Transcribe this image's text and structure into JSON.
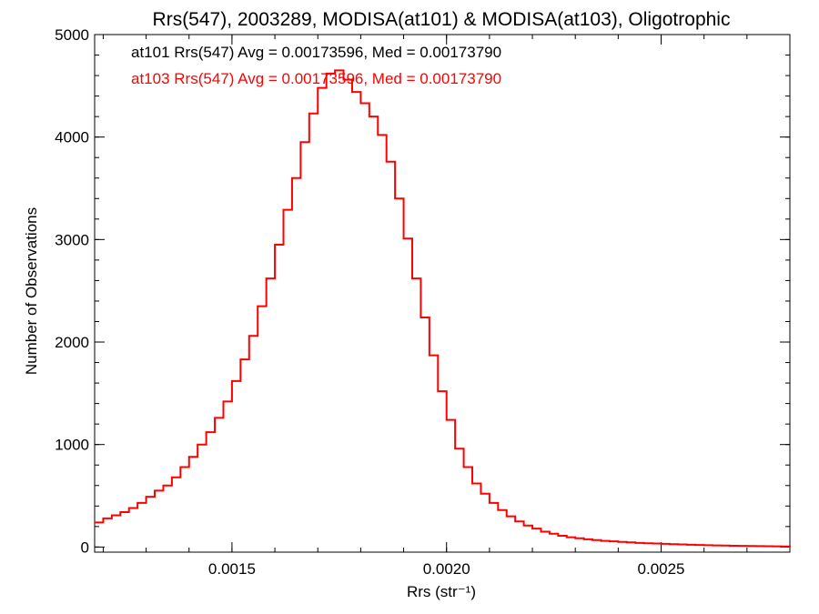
{
  "chart_data": {
    "type": "line",
    "title": "Rrs(547), 2003289, MODISA(at101) & MODISA(at103), Oligotrophic",
    "xlabel": "Rrs (str⁻¹)",
    "ylabel": "Number of Observations",
    "xlim": [
      0.00118,
      0.0028
    ],
    "ylim": [
      -50,
      5000
    ],
    "xticks": [
      0.0015,
      0.002,
      0.0025
    ],
    "xtick_labels": [
      "0.0015",
      "0.0020",
      "0.0025"
    ],
    "yticks": [
      0,
      1000,
      2000,
      3000,
      4000,
      5000
    ],
    "ytick_labels": [
      "0",
      "1000",
      "2000",
      "3000",
      "4000",
      "5000"
    ],
    "x_minor_step": 0.0001,
    "y_minor_step": 200,
    "grid": false,
    "annotations": [
      {
        "text": "at101 Rrs(547) Avg = 0.00173596, Med = 0.00173790",
        "color": "#000000"
      },
      {
        "text": "at103 Rrs(547) Avg = 0.00173596, Med = 0.00173790",
        "color": "#ff0000"
      }
    ],
    "series": [
      {
        "color": "#ff0000",
        "step": true,
        "x": [
          0.00118,
          0.0012,
          0.00122,
          0.00124,
          0.00126,
          0.00128,
          0.0013,
          0.00132,
          0.00134,
          0.00136,
          0.00138,
          0.0014,
          0.00142,
          0.00144,
          0.00146,
          0.00148,
          0.0015,
          0.00152,
          0.00154,
          0.00156,
          0.00158,
          0.0016,
          0.00162,
          0.00164,
          0.00166,
          0.00168,
          0.0017,
          0.00172,
          0.00174,
          0.00176,
          0.00178,
          0.0018,
          0.00182,
          0.00184,
          0.00186,
          0.00188,
          0.0019,
          0.00192,
          0.00194,
          0.00196,
          0.00198,
          0.002,
          0.00202,
          0.00204,
          0.00206,
          0.00208,
          0.0021,
          0.00212,
          0.00214,
          0.00216,
          0.00218,
          0.0022,
          0.00222,
          0.00224,
          0.00226,
          0.00228,
          0.0023,
          0.00232,
          0.00234,
          0.00236,
          0.00238,
          0.0024,
          0.00242,
          0.00244,
          0.00246,
          0.00248,
          0.0025,
          0.00252,
          0.00254,
          0.00256,
          0.00258,
          0.0026,
          0.00262,
          0.00264,
          0.00266,
          0.00268,
          0.0027,
          0.00272,
          0.00274,
          0.00276,
          0.00278,
          0.0028
        ],
        "y": [
          240,
          280,
          310,
          340,
          380,
          430,
          490,
          550,
          600,
          680,
          780,
          880,
          1000,
          1120,
          1260,
          1420,
          1620,
          1830,
          2060,
          2350,
          2620,
          2950,
          3290,
          3600,
          3950,
          4230,
          4480,
          4620,
          4650,
          4560,
          4440,
          4330,
          4200,
          4020,
          3760,
          3400,
          3010,
          2620,
          2240,
          1870,
          1520,
          1240,
          960,
          780,
          620,
          520,
          430,
          360,
          300,
          250,
          210,
          180,
          150,
          130,
          110,
          95,
          85,
          75,
          68,
          60,
          55,
          50,
          45,
          40,
          37,
          34,
          31,
          28,
          25,
          22,
          20,
          18,
          16,
          14,
          12,
          11,
          10,
          9,
          8,
          7,
          6,
          5
        ]
      }
    ]
  }
}
